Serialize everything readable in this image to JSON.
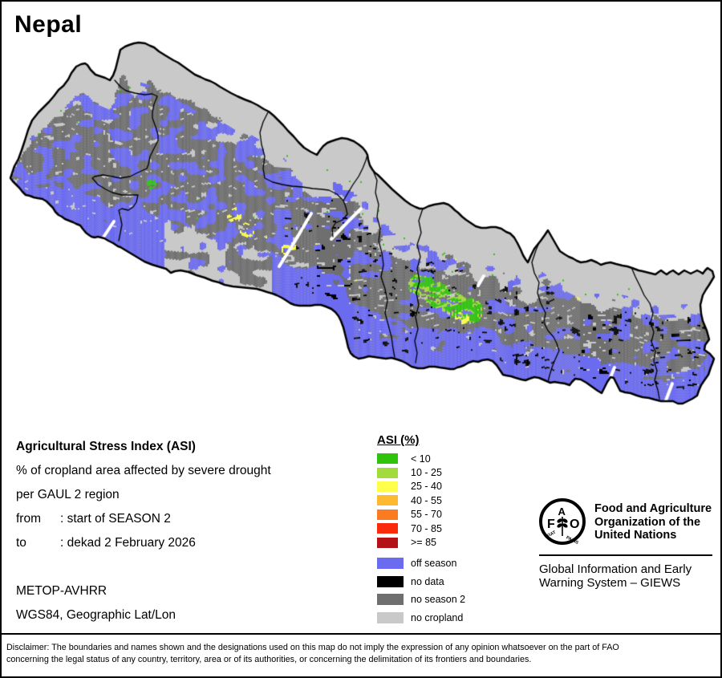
{
  "title": "Nepal",
  "info": {
    "line1": "Agricultural Stress Index (ASI)",
    "line2": "% of cropland area affected by severe drought",
    "line3": "per GAUL 2 region",
    "from_label": "from",
    "from_value": ": start of SEASON 2",
    "to_label": "to",
    "to_value": ": dekad 2 February 2026",
    "sensor": "METOP-AVHRR",
    "projection": "WGS84, Geographic Lat/Lon"
  },
  "legend": {
    "title": "ASI (%)",
    "classes": [
      {
        "label": "< 10",
        "color": "#2fc30e"
      },
      {
        "label": "10 - 25",
        "color": "#a4db3c"
      },
      {
        "label": "25 - 40",
        "color": "#fefe4b"
      },
      {
        "label": "40 - 55",
        "color": "#fdb92f"
      },
      {
        "label": "55 - 70",
        "color": "#fb7b20"
      },
      {
        "label": "70 - 85",
        "color": "#f92b0a"
      },
      {
        "label": ">= 85",
        "color": "#b31117"
      }
    ],
    "extra": [
      {
        "label": "off season",
        "color": "#6b6bf0"
      },
      {
        "label": "no data",
        "color": "#000000"
      },
      {
        "label": "no season 2",
        "color": "#6f6f6f"
      },
      {
        "label": "no cropland",
        "color": "#c9c9c9"
      }
    ]
  },
  "fao": {
    "logo_letters": {
      "f": "F",
      "a": "A",
      "o": "O"
    },
    "motto_left": "FIAT",
    "motto_right": "PANIS",
    "org_lines": [
      "Food and Agriculture",
      "Organization of the",
      "United Nations"
    ],
    "giews_lines": [
      "Global Information and Early",
      "Warning System – GIEWS"
    ]
  },
  "disclaimer": [
    "Disclaimer: The boundaries and names shown and the designations used on this map do not imply the expression of any opinion whatsoever on the part of FAO",
    "concerning the legal status of any country, territory, area or of its authorities, or concerning the delimitation of its frontiers and boundaries."
  ]
}
